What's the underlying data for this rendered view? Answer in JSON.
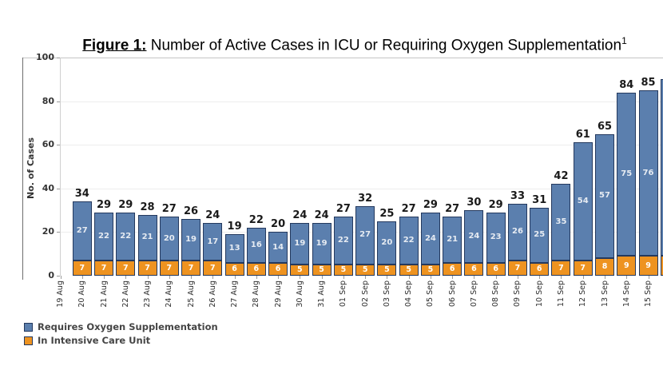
{
  "title": {
    "prefix": "Figure 1:",
    "text": " Number of Active Cases in ICU or Requiring Oxygen Supplementation",
    "superscript": "1"
  },
  "chart_data": {
    "type": "bar",
    "stacked": true,
    "title": "Figure 1: Number of Active Cases in ICU or Requiring Oxygen Supplementation",
    "xlabel": "",
    "ylabel": "No. of Cases",
    "ylim": [
      0,
      100
    ],
    "yticks": [
      0,
      20,
      40,
      60,
      80,
      100
    ],
    "grid": "faint-horizontal",
    "legend_position": "bottom-left",
    "categories": [
      "19 Aug",
      "20 Aug",
      "21 Aug",
      "22 Aug",
      "23 Aug",
      "24 Aug",
      "25 Aug",
      "26 Aug",
      "27 Aug",
      "28 Aug",
      "29 Aug",
      "30 Aug",
      "31 Aug",
      "01 Sep",
      "02 Sep",
      "03 Sep",
      "04 Sep",
      "05 Sep",
      "06 Sep",
      "07 Sep",
      "08 Sep",
      "09 Sep",
      "10 Sep",
      "11 Sep",
      "12 Sep",
      "13 Sep",
      "14 Sep",
      "15 Sep"
    ],
    "series": [
      {
        "name": "Requires Oxygen Supplementation",
        "color": "#5b7fae",
        "values": [
          null,
          27,
          22,
          22,
          21,
          20,
          19,
          17,
          13,
          16,
          14,
          19,
          19,
          22,
          27,
          20,
          22,
          24,
          21,
          24,
          23,
          26,
          25,
          35,
          54,
          57,
          75,
          76
        ]
      },
      {
        "name": "In Intensive Care Unit",
        "color": "#ee9320",
        "values": [
          null,
          7,
          7,
          7,
          7,
          7,
          7,
          7,
          6,
          6,
          6,
          5,
          5,
          5,
          5,
          5,
          5,
          5,
          6,
          6,
          6,
          7,
          6,
          7,
          7,
          8,
          9,
          9
        ]
      }
    ],
    "totals": [
      null,
      34,
      29,
      29,
      28,
      27,
      26,
      24,
      19,
      22,
      20,
      24,
      24,
      27,
      32,
      25,
      27,
      29,
      27,
      30,
      29,
      33,
      31,
      42,
      61,
      65,
      84,
      85
    ],
    "clipped_partial_bar_at_right_edge": {
      "approx_total": 90,
      "approx_icu": 9
    }
  },
  "legend": {
    "items": [
      {
        "label": "Requires Oxygen Supplementation",
        "color": "#5b7fae"
      },
      {
        "label": "In Intensive Care Unit",
        "color": "#ee9320"
      }
    ]
  },
  "colors": {
    "bar_border": "#24395e",
    "total_label": "#1a1a1a",
    "axis_text": "#333333",
    "gridline": "#ededed"
  }
}
